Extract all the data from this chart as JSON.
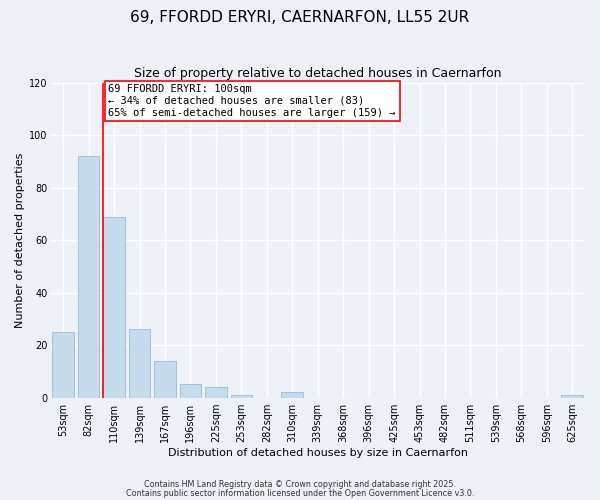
{
  "title": "69, FFORDD ERYRI, CAERNARFON, LL55 2UR",
  "subtitle": "Size of property relative to detached houses in Caernarfon",
  "xlabel": "Distribution of detached houses by size in Caernarfon",
  "ylabel": "Number of detached properties",
  "bar_labels": [
    "53sqm",
    "82sqm",
    "110sqm",
    "139sqm",
    "167sqm",
    "196sqm",
    "225sqm",
    "253sqm",
    "282sqm",
    "310sqm",
    "339sqm",
    "368sqm",
    "396sqm",
    "425sqm",
    "453sqm",
    "482sqm",
    "511sqm",
    "539sqm",
    "568sqm",
    "596sqm",
    "625sqm"
  ],
  "bar_values": [
    25,
    92,
    69,
    26,
    14,
    5,
    4,
    1,
    0,
    2,
    0,
    0,
    0,
    0,
    0,
    0,
    0,
    0,
    0,
    0,
    1
  ],
  "bar_color": "#c6dcec",
  "bar_edge_color": "#8ab4cd",
  "annotation_line1": "69 FFORDD ERYRI: 100sqm",
  "annotation_line2": "← 34% of detached houses are smaller (83)",
  "annotation_line3": "65% of semi-detached houses are larger (159) →",
  "red_line_bar_index": 2,
  "ylim": [
    0,
    120
  ],
  "yticks": [
    0,
    20,
    40,
    60,
    80,
    100,
    120
  ],
  "footnote1": "Contains HM Land Registry data © Crown copyright and database right 2025.",
  "footnote2": "Contains public sector information licensed under the Open Government Licence v3.0.",
  "background_color": "#eef2f8",
  "plot_bg_color": "#eef2f8",
  "grid_color": "#ffffff",
  "title_fontsize": 11,
  "subtitle_fontsize": 9,
  "axis_label_fontsize": 8,
  "tick_fontsize": 7,
  "annotation_fontsize": 7.5,
  "footnote_fontsize": 5.8
}
